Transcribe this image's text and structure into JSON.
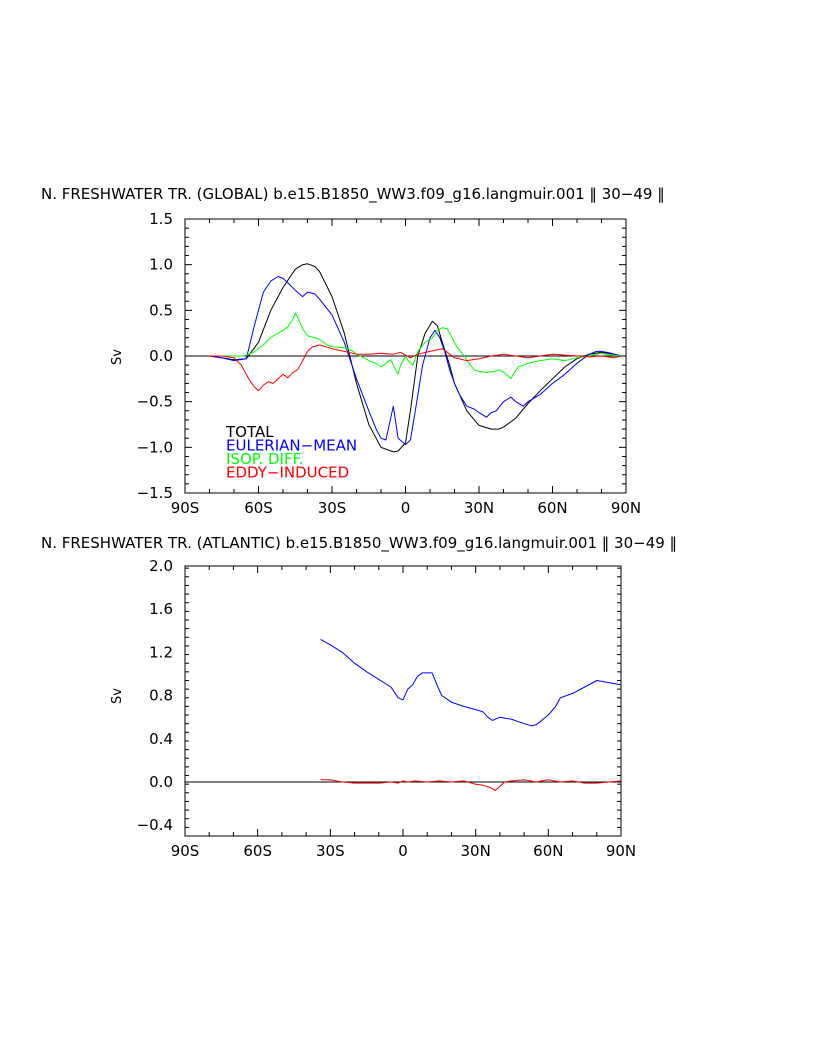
{
  "chart_data": [
    {
      "type": "line",
      "title": "N. FRESHWATER TR. (GLOBAL) b.e15.B1850_WW3.f09_g16.langmuir.001 ‖ 30−49 ‖",
      "xlabel": "",
      "ylabel": "Sv",
      "xlim": [
        -90,
        90
      ],
      "ylim": [
        -1.5,
        1.5
      ],
      "xticks": [
        -90,
        -60,
        -30,
        0,
        30,
        60,
        90
      ],
      "xtick_labels": [
        "90S",
        "60S",
        "30S",
        "0",
        "30N",
        "60N",
        "90N"
      ],
      "yticks": [
        -1.5,
        -1.0,
        -0.5,
        0.0,
        0.5,
        1.0,
        1.5
      ],
      "ytick_labels": [
        "−1.5",
        "−1.0",
        "−0.5",
        "0.0",
        "0.5",
        "1.0",
        "1.5"
      ],
      "zero_line": true,
      "legend_position": "bottom-left",
      "series": [
        {
          "name": "TOTAL",
          "color": "#000000",
          "x": [
            -80,
            -75,
            -70,
            -65,
            -60,
            -55,
            -50,
            -45,
            -42,
            -40,
            -37,
            -35,
            -30,
            -25,
            -20,
            -15,
            -10,
            -5,
            -3,
            0,
            2,
            5,
            8,
            11,
            13,
            15,
            18,
            20,
            25,
            30,
            35,
            38,
            40,
            45,
            50,
            55,
            60,
            65,
            70,
            75,
            80,
            85,
            88
          ],
          "y": [
            0.0,
            -0.02,
            -0.04,
            -0.03,
            0.15,
            0.5,
            0.75,
            0.95,
            1.0,
            1.01,
            0.98,
            0.92,
            0.65,
            0.25,
            -0.3,
            -0.75,
            -1.0,
            -1.05,
            -1.04,
            -0.95,
            -0.6,
            0.0,
            0.25,
            0.38,
            0.33,
            0.15,
            -0.1,
            -0.3,
            -0.6,
            -0.76,
            -0.8,
            -0.8,
            -0.78,
            -0.68,
            -0.52,
            -0.38,
            -0.25,
            -0.12,
            -0.03,
            0.02,
            0.04,
            0.02,
            0.0
          ]
        },
        {
          "name": "EULERIAN−MEAN",
          "color": "#0000ff",
          "x": [
            -80,
            -75,
            -70,
            -65,
            -62,
            -60,
            -58,
            -55,
            -52,
            -50,
            -48,
            -45,
            -42,
            -40,
            -37,
            -35,
            -30,
            -25,
            -20,
            -15,
            -12,
            -10,
            -8,
            -5,
            -3,
            0,
            2,
            4,
            7,
            10,
            12,
            14,
            16,
            18,
            20,
            22,
            25,
            28,
            30,
            33,
            35,
            37,
            40,
            43,
            45,
            48,
            50,
            55,
            60,
            65,
            70,
            75,
            78,
            80,
            84,
            88
          ],
          "y": [
            0.0,
            -0.02,
            -0.05,
            -0.03,
            0.3,
            0.5,
            0.7,
            0.82,
            0.87,
            0.85,
            0.8,
            0.72,
            0.65,
            0.7,
            0.68,
            0.62,
            0.45,
            0.15,
            -0.25,
            -0.6,
            -0.8,
            -0.9,
            -0.92,
            -0.55,
            -0.9,
            -0.97,
            -0.92,
            -0.6,
            -0.1,
            0.2,
            0.28,
            0.2,
            0.05,
            -0.15,
            -0.3,
            -0.42,
            -0.55,
            -0.58,
            -0.62,
            -0.67,
            -0.62,
            -0.6,
            -0.5,
            -0.45,
            -0.5,
            -0.55,
            -0.5,
            -0.42,
            -0.3,
            -0.2,
            -0.08,
            0.02,
            0.05,
            0.05,
            0.03,
            0.0
          ]
        },
        {
          "name": "ISOP. DIFF.",
          "color": "#00ff00",
          "x": [
            -80,
            -75,
            -70,
            -66,
            -62,
            -60,
            -58,
            -56,
            -54,
            -52,
            -50,
            -48,
            -46,
            -45,
            -44,
            -42,
            -40,
            -37,
            -35,
            -32,
            -30,
            -25,
            -22,
            -20,
            -17,
            -15,
            -12,
            -10,
            -8,
            -6,
            -5,
            -3,
            -2,
            -1,
            0,
            1,
            3,
            5,
            8,
            11,
            13,
            15,
            17,
            19,
            21,
            24,
            26,
            28,
            30,
            33,
            36,
            38,
            40,
            42,
            43,
            44,
            46,
            50,
            55,
            60,
            65,
            70,
            75,
            78,
            80,
            84,
            88
          ],
          "y": [
            0.0,
            0.0,
            0.0,
            0.0,
            0.04,
            0.08,
            0.12,
            0.18,
            0.22,
            0.25,
            0.28,
            0.32,
            0.4,
            0.47,
            0.42,
            0.3,
            0.22,
            0.2,
            0.18,
            0.12,
            0.1,
            0.09,
            0.06,
            0.02,
            -0.02,
            -0.05,
            -0.08,
            -0.12,
            -0.08,
            -0.04,
            -0.1,
            -0.2,
            -0.1,
            -0.05,
            0.0,
            -0.05,
            -0.1,
            0.05,
            0.15,
            0.2,
            0.28,
            0.31,
            0.3,
            0.2,
            0.1,
            0.0,
            -0.08,
            -0.15,
            -0.17,
            -0.18,
            -0.17,
            -0.15,
            -0.18,
            -0.22,
            -0.25,
            -0.2,
            -0.12,
            -0.08,
            -0.05,
            -0.03,
            -0.05,
            -0.02,
            0.0,
            0.02,
            0.03,
            0.01,
            0.0
          ]
        },
        {
          "name": "EDDY−INDUCED",
          "color": "#ff0000",
          "x": [
            -80,
            -75,
            -70,
            -67,
            -64,
            -62,
            -60,
            -58,
            -56,
            -54,
            -52,
            -50,
            -48,
            -46,
            -44,
            -42,
            -40,
            -38,
            -35,
            -30,
            -25,
            -20,
            -15,
            -10,
            -5,
            -2,
            0,
            2,
            5,
            10,
            15,
            20,
            25,
            30,
            35,
            40,
            45,
            50,
            55,
            60,
            65,
            70,
            75,
            80,
            85,
            88
          ],
          "y": [
            0.0,
            0.0,
            -0.02,
            -0.1,
            -0.25,
            -0.33,
            -0.38,
            -0.32,
            -0.28,
            -0.3,
            -0.25,
            -0.2,
            -0.24,
            -0.18,
            -0.15,
            -0.05,
            0.05,
            0.1,
            0.12,
            0.08,
            0.05,
            0.02,
            0.02,
            0.03,
            0.02,
            0.04,
            0.01,
            -0.02,
            0.02,
            0.05,
            0.08,
            -0.02,
            -0.05,
            -0.03,
            0.0,
            0.02,
            0.0,
            -0.02,
            0.0,
            0.02,
            0.01,
            0.0,
            -0.01,
            0.0,
            -0.02,
            0.0
          ]
        }
      ],
      "legend": [
        "TOTAL",
        "EULERIAN−MEAN",
        "ISOP. DIFF.",
        "EDDY−INDUCED"
      ]
    },
    {
      "type": "line",
      "title": "N. FRESHWATER TR. (ATLANTIC) b.e15.B1850_WW3.f09_g16.langmuir.001 ‖ 30−49 ‖",
      "xlabel": "",
      "ylabel": "Sv",
      "xlim": [
        -90,
        90
      ],
      "ylim": [
        -0.5,
        2.0
      ],
      "xticks": [
        -90,
        -60,
        -30,
        0,
        30,
        60,
        90
      ],
      "xtick_labels": [
        "90S",
        "60S",
        "30S",
        "0",
        "30N",
        "60N",
        "90N"
      ],
      "yticks": [
        -0.4,
        0.0,
        0.4,
        0.8,
        1.2,
        1.6,
        2.0
      ],
      "ytick_labels": [
        "−0.4",
        "0.0",
        "0.4",
        "0.8",
        "1.2",
        "1.6",
        "2.0"
      ],
      "zero_line": true,
      "series": [
        {
          "name": "",
          "color": "#0000ff",
          "x": [
            -34,
            -30,
            -25,
            -20,
            -15,
            -10,
            -5,
            -2,
            0,
            2,
            4,
            6,
            8,
            10,
            12,
            14,
            16,
            20,
            25,
            30,
            33,
            35,
            37,
            40,
            45,
            50,
            53,
            55,
            60,
            63,
            65,
            70,
            75,
            80,
            85,
            90
          ],
          "y": [
            1.32,
            1.27,
            1.2,
            1.1,
            1.02,
            0.95,
            0.88,
            0.78,
            0.76,
            0.86,
            0.9,
            0.98,
            1.01,
            1.01,
            1.01,
            0.9,
            0.8,
            0.74,
            0.7,
            0.67,
            0.65,
            0.6,
            0.57,
            0.6,
            0.58,
            0.54,
            0.52,
            0.53,
            0.62,
            0.7,
            0.78,
            0.82,
            0.88,
            0.94,
            0.92,
            0.9
          ]
        },
        {
          "name": "",
          "color": "#ff0000",
          "x": [
            -34,
            -30,
            -25,
            -20,
            -10,
            -5,
            -2,
            0,
            2,
            5,
            10,
            15,
            20,
            25,
            30,
            33,
            36,
            38,
            40,
            42,
            45,
            50,
            55,
            60,
            65,
            70,
            75,
            80,
            85,
            90
          ],
          "y": [
            0.02,
            0.02,
            0.0,
            -0.01,
            -0.01,
            0.0,
            -0.01,
            0.01,
            0.0,
            0.01,
            0.0,
            0.01,
            0.0,
            0.01,
            -0.02,
            -0.03,
            -0.05,
            -0.08,
            -0.04,
            0.0,
            0.01,
            0.02,
            0.0,
            0.02,
            0.0,
            0.01,
            -0.01,
            -0.01,
            0.0,
            0.01
          ]
        }
      ]
    }
  ]
}
